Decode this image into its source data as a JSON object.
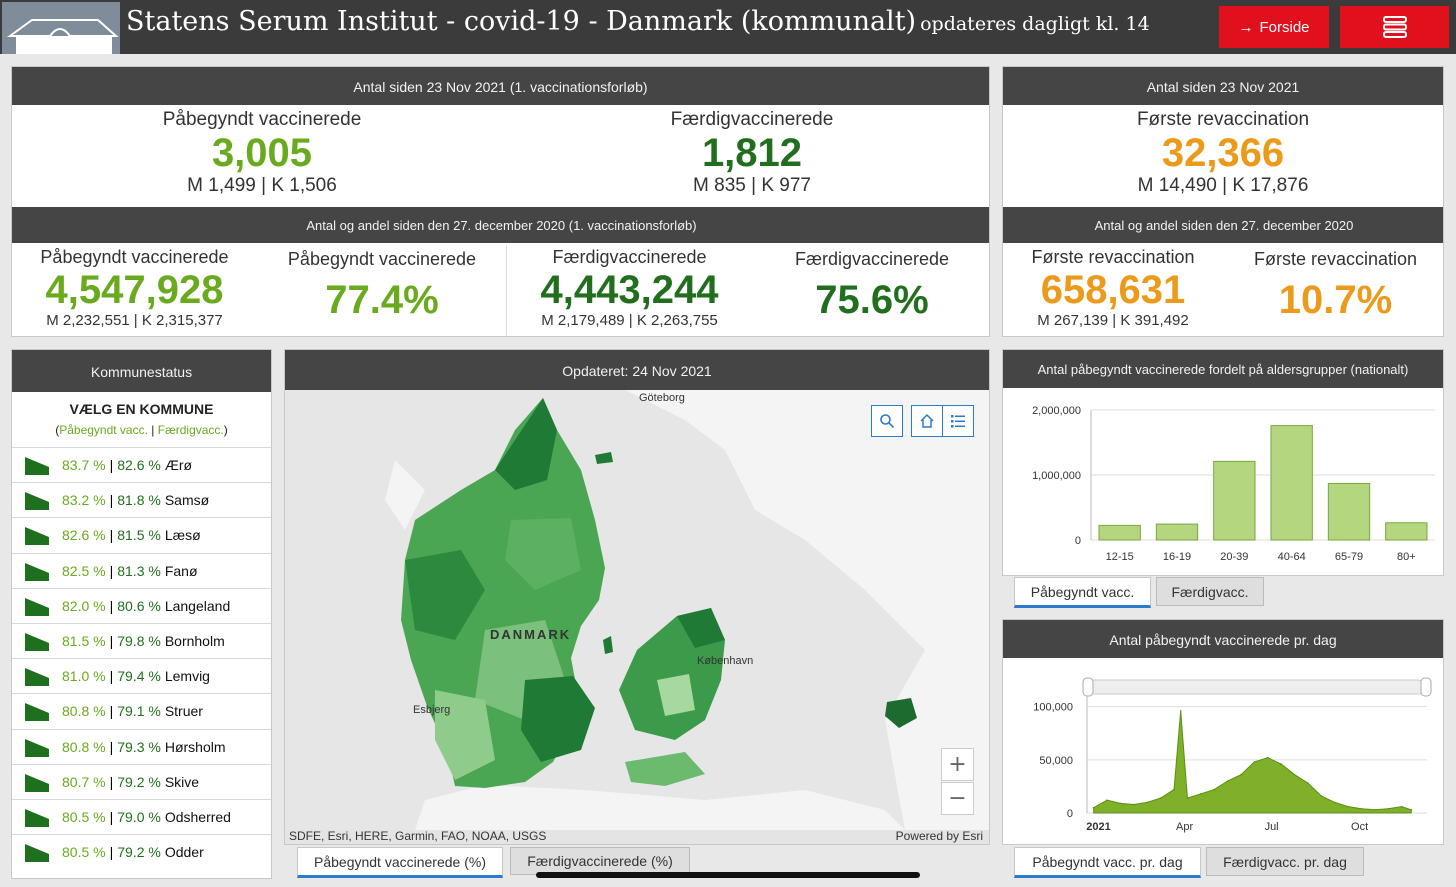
{
  "header": {
    "title": "Statens Serum Institut - covid-19 - Danmark (kommunalt)",
    "subtitle": "opdateres dagligt kl. 14",
    "forside_label": "Forside"
  },
  "top_left": {
    "bar": "Antal siden 23 Nov 2021 (1. vaccinationsforløb)",
    "p_label": "Påbegyndt vaccinerede",
    "p_value": "3,005",
    "p_sub": "M 1,499 | K 1,506",
    "f_label": "Færdigvaccinerede",
    "f_value": "1,812",
    "f_sub": "M 835 | K 977",
    "bar2": "Antal og andel siden den 27. december 2020 (1. vaccinationsforløb)",
    "p2_label": "Påbegyndt vaccinerede",
    "p2_value": "4,547,928",
    "p2_sub": "M 2,232,551 | K 2,315,377",
    "p2_pct_label": "Påbegyndt vaccinerede",
    "p2_pct": "77.4%",
    "f2_label": "Færdigvaccinerede",
    "f2_value": "4,443,244",
    "f2_sub": "M 2,179,489 | K 2,263,755",
    "f2_pct_label": "Færdigvaccinerede",
    "f2_pct": "75.6%"
  },
  "top_right": {
    "bar": "Antal siden 23 Nov 2021",
    "r_label": "Første revaccination",
    "r_value": "32,366",
    "r_sub": "M 14,490 | K 17,876",
    "bar2": "Antal og andel siden den 27. december 2020",
    "r2_label": "Første revaccination",
    "r2_value": "658,631",
    "r2_sub": "M 267,139 | K 391,492",
    "r2_pct_label": "Første revaccination",
    "r2_pct": "10.7%"
  },
  "kommune": {
    "bar": "Kommunestatus",
    "title": "VÆLG EN KOMMUNE",
    "legend_p": "Påbegyndt vacc.",
    "legend_f": "Færdigvacc.",
    "rows": [
      {
        "p": "83.7 %",
        "f": "82.6 %",
        "name": "Ærø"
      },
      {
        "p": "83.2 %",
        "f": "81.8 %",
        "name": "Samsø"
      },
      {
        "p": "82.6 %",
        "f": "81.5 %",
        "name": "Læsø"
      },
      {
        "p": "82.5 %",
        "f": "81.3 %",
        "name": "Fanø"
      },
      {
        "p": "82.0 %",
        "f": "80.6 %",
        "name": "Langeland"
      },
      {
        "p": "81.5 %",
        "f": "79.8 %",
        "name": "Bornholm"
      },
      {
        "p": "81.0 %",
        "f": "79.4 %",
        "name": "Lemvig"
      },
      {
        "p": "80.8 %",
        "f": "79.1 %",
        "name": "Struer"
      },
      {
        "p": "80.8 %",
        "f": "79.3 %",
        "name": "Hørsholm"
      },
      {
        "p": "80.7 %",
        "f": "79.2 %",
        "name": "Skive"
      },
      {
        "p": "80.5 %",
        "f": "79.0 %",
        "name": "Odsherred"
      },
      {
        "p": "80.5 %",
        "f": "79.2 %",
        "name": "Odder"
      }
    ]
  },
  "map": {
    "bar": "Opdateret: 24 Nov 2021",
    "labels": {
      "goteborg": "Göteborg",
      "danmark": "DANMARK",
      "kobenhavn": "København",
      "esbjerg": "Esbjerg"
    },
    "attribution": "SDFE, Esri, HERE, Garmin, FAO, NOAA, USGS",
    "powered": "Powered by Esri",
    "tab_active": "Påbegyndt vaccinerede (%)",
    "tab_inactive": "Færdigvaccinerede (%)"
  },
  "age_chart": {
    "bar": "Antal påbegyndt vaccinerede fordelt på aldersgrupper (nationalt)",
    "tab_active": "Påbegyndt vacc.",
    "tab_inactive": "Færdigvacc."
  },
  "daily_chart": {
    "bar": "Antal påbegyndt vaccinerede pr. dag",
    "tab_active": "Påbegyndt vacc. pr. dag",
    "tab_inactive": "Færdigvacc. pr. dag"
  },
  "colors": {
    "green_light": "#6aaa1e",
    "green_dark": "#216f1e",
    "orange": "#ec9a19",
    "red": "#e0111d",
    "bar_fill": "#b3d67e"
  },
  "chart_data": [
    {
      "type": "bar",
      "title": "Antal påbegyndt vaccinerede fordelt på aldersgrupper (nationalt)",
      "categories": [
        "12-15",
        "16-19",
        "20-39",
        "40-64",
        "65-79",
        "80+"
      ],
      "values": [
        225000,
        245000,
        1210000,
        1760000,
        870000,
        265000
      ],
      "yticks": [
        "0",
        "1,000,000",
        "2,000,000"
      ],
      "ylim": [
        0,
        2000000
      ],
      "grid": true
    },
    {
      "type": "area",
      "title": "Antal påbegyndt vaccinerede pr. dag",
      "xticks": [
        "2021",
        "Apr",
        "Jul",
        "Oct"
      ],
      "yticks": [
        "0",
        "50,000",
        "100,000"
      ],
      "ylim": [
        0,
        110000
      ],
      "x": [
        "2020-12-27",
        "2021-01-10",
        "2021-01-24",
        "2021-02-07",
        "2021-02-21",
        "2021-03-07",
        "2021-03-21",
        "2021-03-28",
        "2021-04-04",
        "2021-04-18",
        "2021-05-02",
        "2021-05-16",
        "2021-05-30",
        "2021-06-13",
        "2021-06-27",
        "2021-07-11",
        "2021-07-25",
        "2021-08-08",
        "2021-08-22",
        "2021-09-05",
        "2021-09-19",
        "2021-10-03",
        "2021-10-17",
        "2021-10-31",
        "2021-11-14",
        "2021-11-24"
      ],
      "values": [
        5000,
        12000,
        9000,
        8000,
        10000,
        14000,
        22000,
        96000,
        14000,
        18000,
        22000,
        30000,
        36000,
        48000,
        52000,
        46000,
        36000,
        28000,
        16000,
        10000,
        6000,
        4000,
        3000,
        4000,
        6000,
        3000
      ]
    }
  ]
}
